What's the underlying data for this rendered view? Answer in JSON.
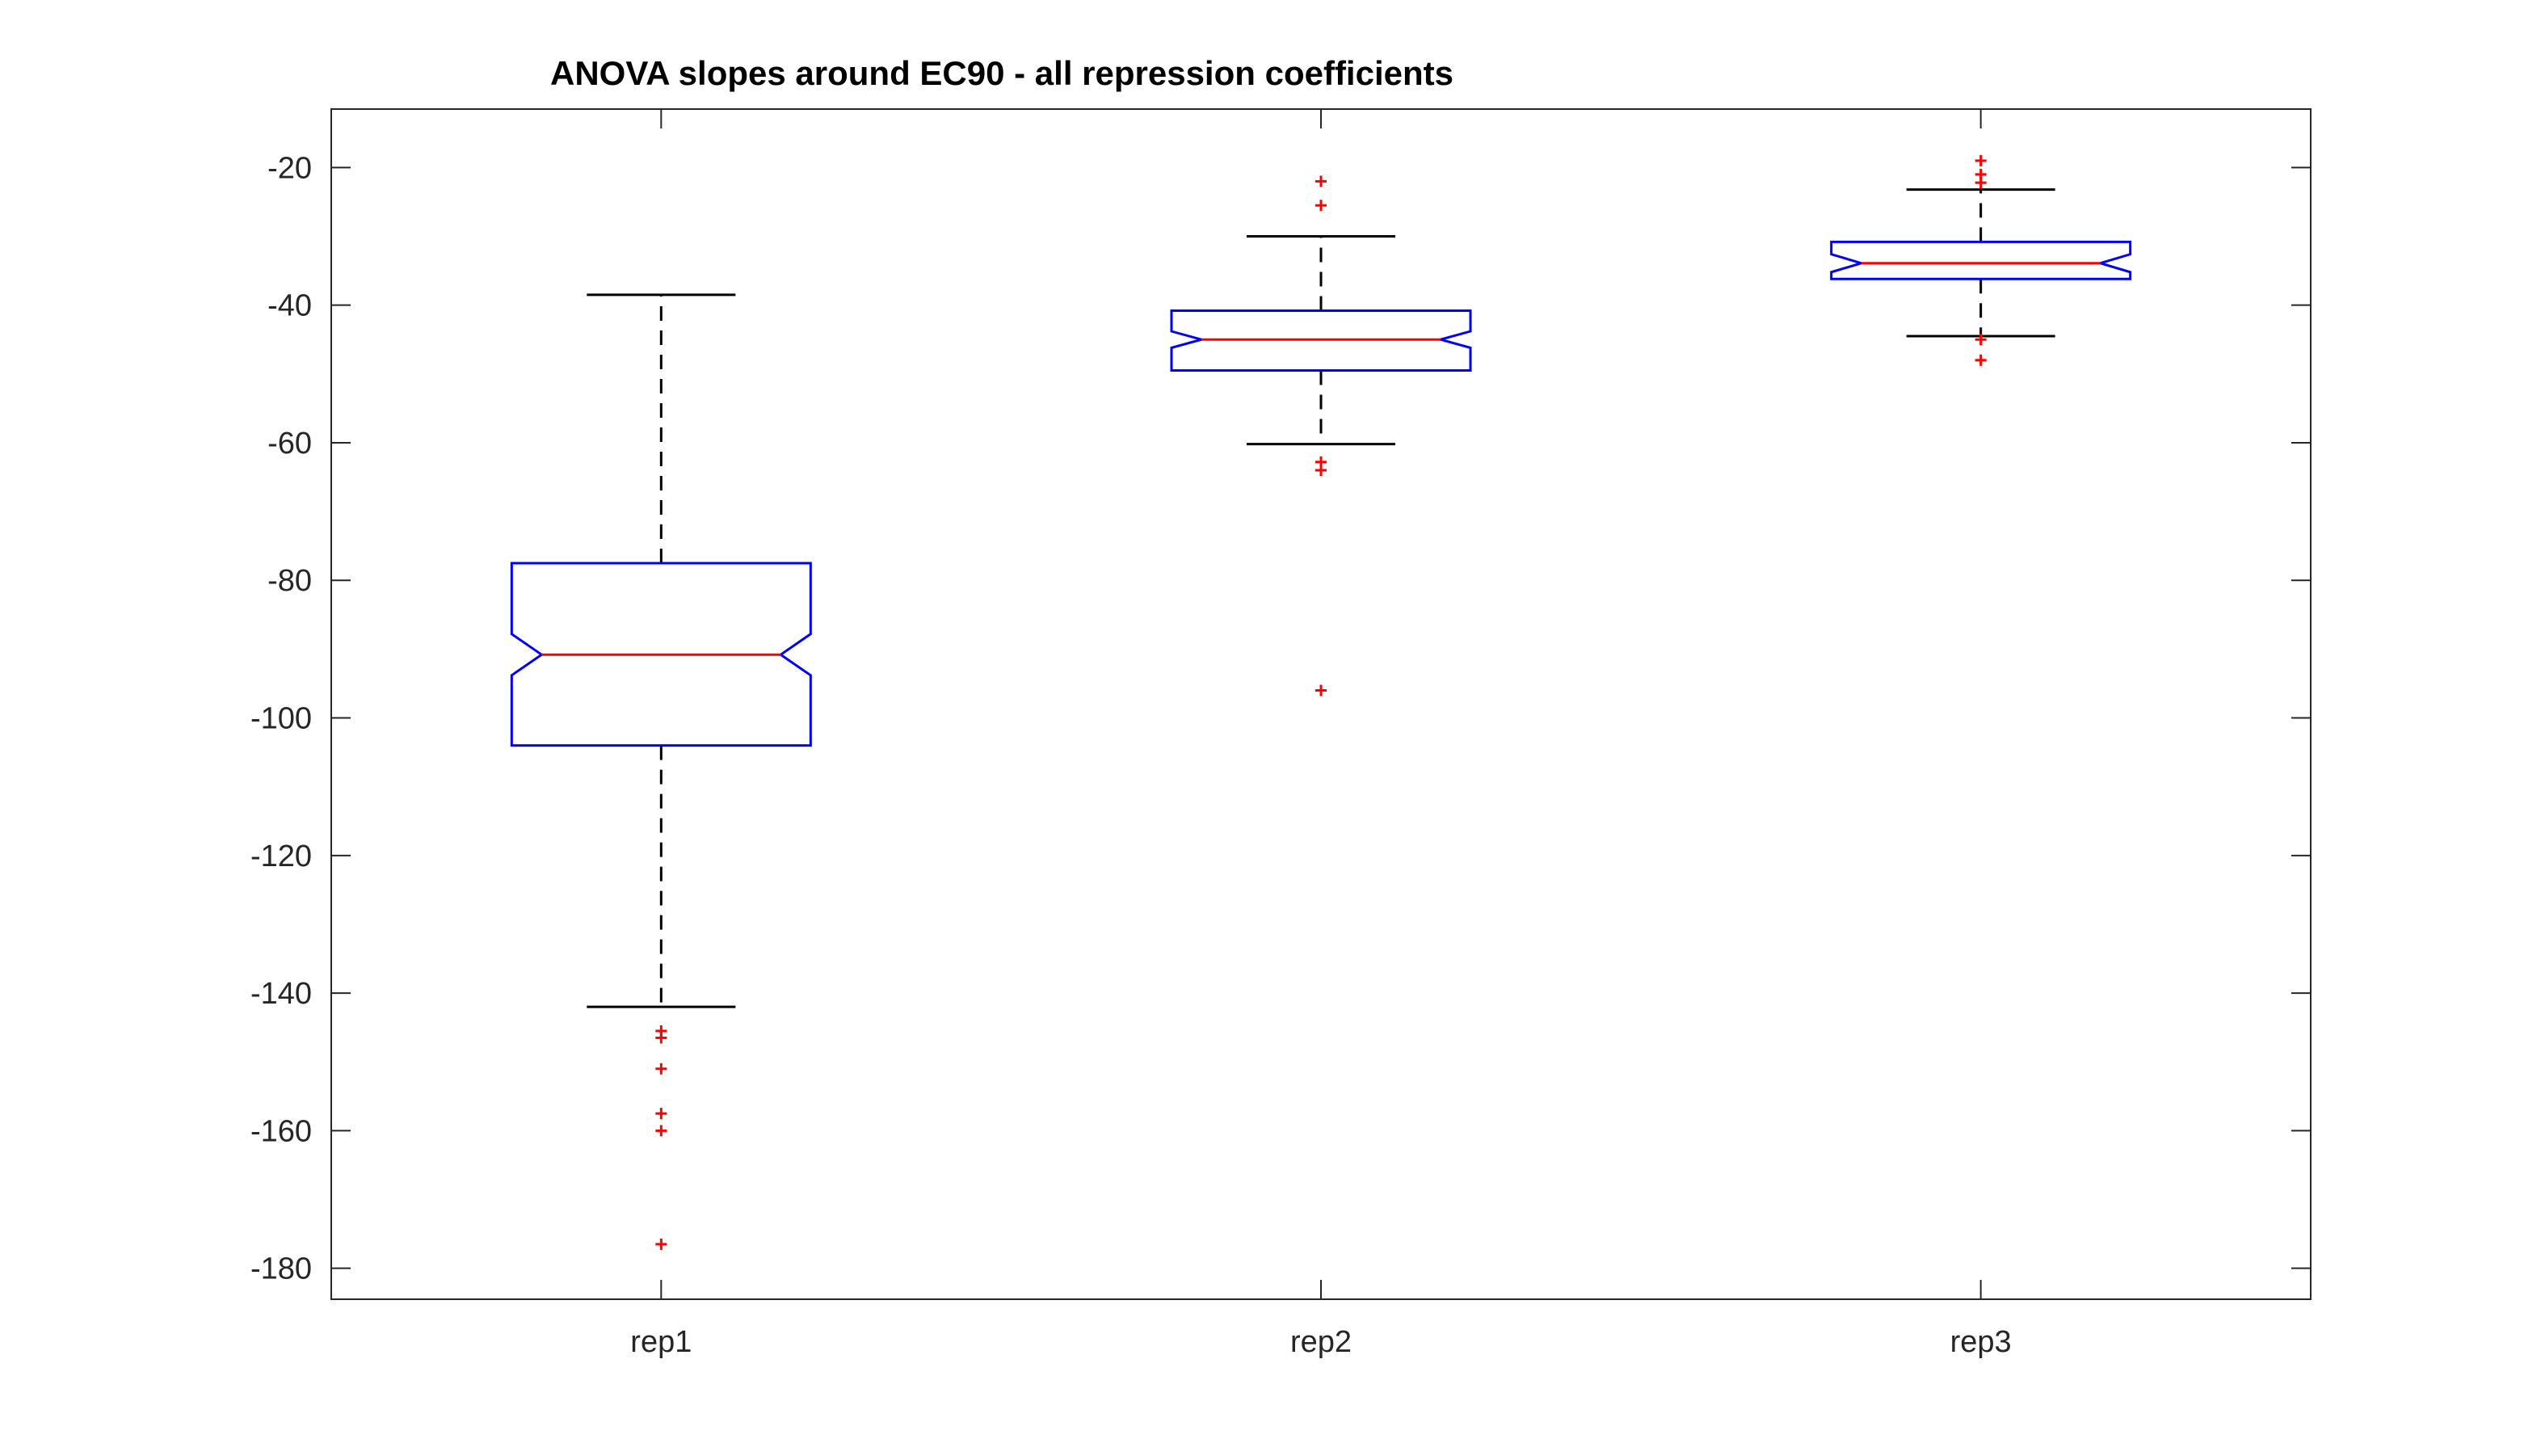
{
  "chart_data": {
    "type": "box",
    "title": "ANOVA slopes around EC90 - all repression coefficients",
    "xlabel": "",
    "ylabel": "",
    "categories": [
      "rep1",
      "rep2",
      "rep3"
    ],
    "ylim": [
      -184.5,
      -11.5
    ],
    "yticks": [
      -180,
      -160,
      -140,
      -120,
      -100,
      -80,
      -60,
      -40,
      -20
    ],
    "notched": true,
    "grid": false,
    "boxes": [
      {
        "label": "rep1",
        "whisker_low": -142,
        "q1": -104,
        "notch_low": -93.8,
        "median": -90.8,
        "notch_high": -87.8,
        "q3": -77.5,
        "whisker_high": -38.5,
        "outliers": [
          -145.5,
          -146.5,
          -151,
          -157.5,
          -160,
          -176.5
        ]
      },
      {
        "label": "rep2",
        "whisker_low": -60.2,
        "q1": -49.5,
        "notch_low": -46.2,
        "median": -45,
        "notch_high": -43.8,
        "q3": -40.8,
        "whisker_high": -30,
        "outliers": [
          -22,
          -25.5,
          -62.8,
          -64,
          -96
        ]
      },
      {
        "label": "rep3",
        "whisker_low": -44.5,
        "q1": -36.2,
        "notch_low": -35.2,
        "median": -33.9,
        "notch_high": -32.6,
        "q3": -30.8,
        "whisker_high": -23.2,
        "outliers": [
          -19,
          -21,
          -22.2,
          -45,
          -48
        ]
      }
    ],
    "colors": {
      "box": "#0000ff",
      "median": "#ff0000",
      "whisker": "#000000",
      "outlier": "#ff0000",
      "axes": "#262626"
    }
  }
}
